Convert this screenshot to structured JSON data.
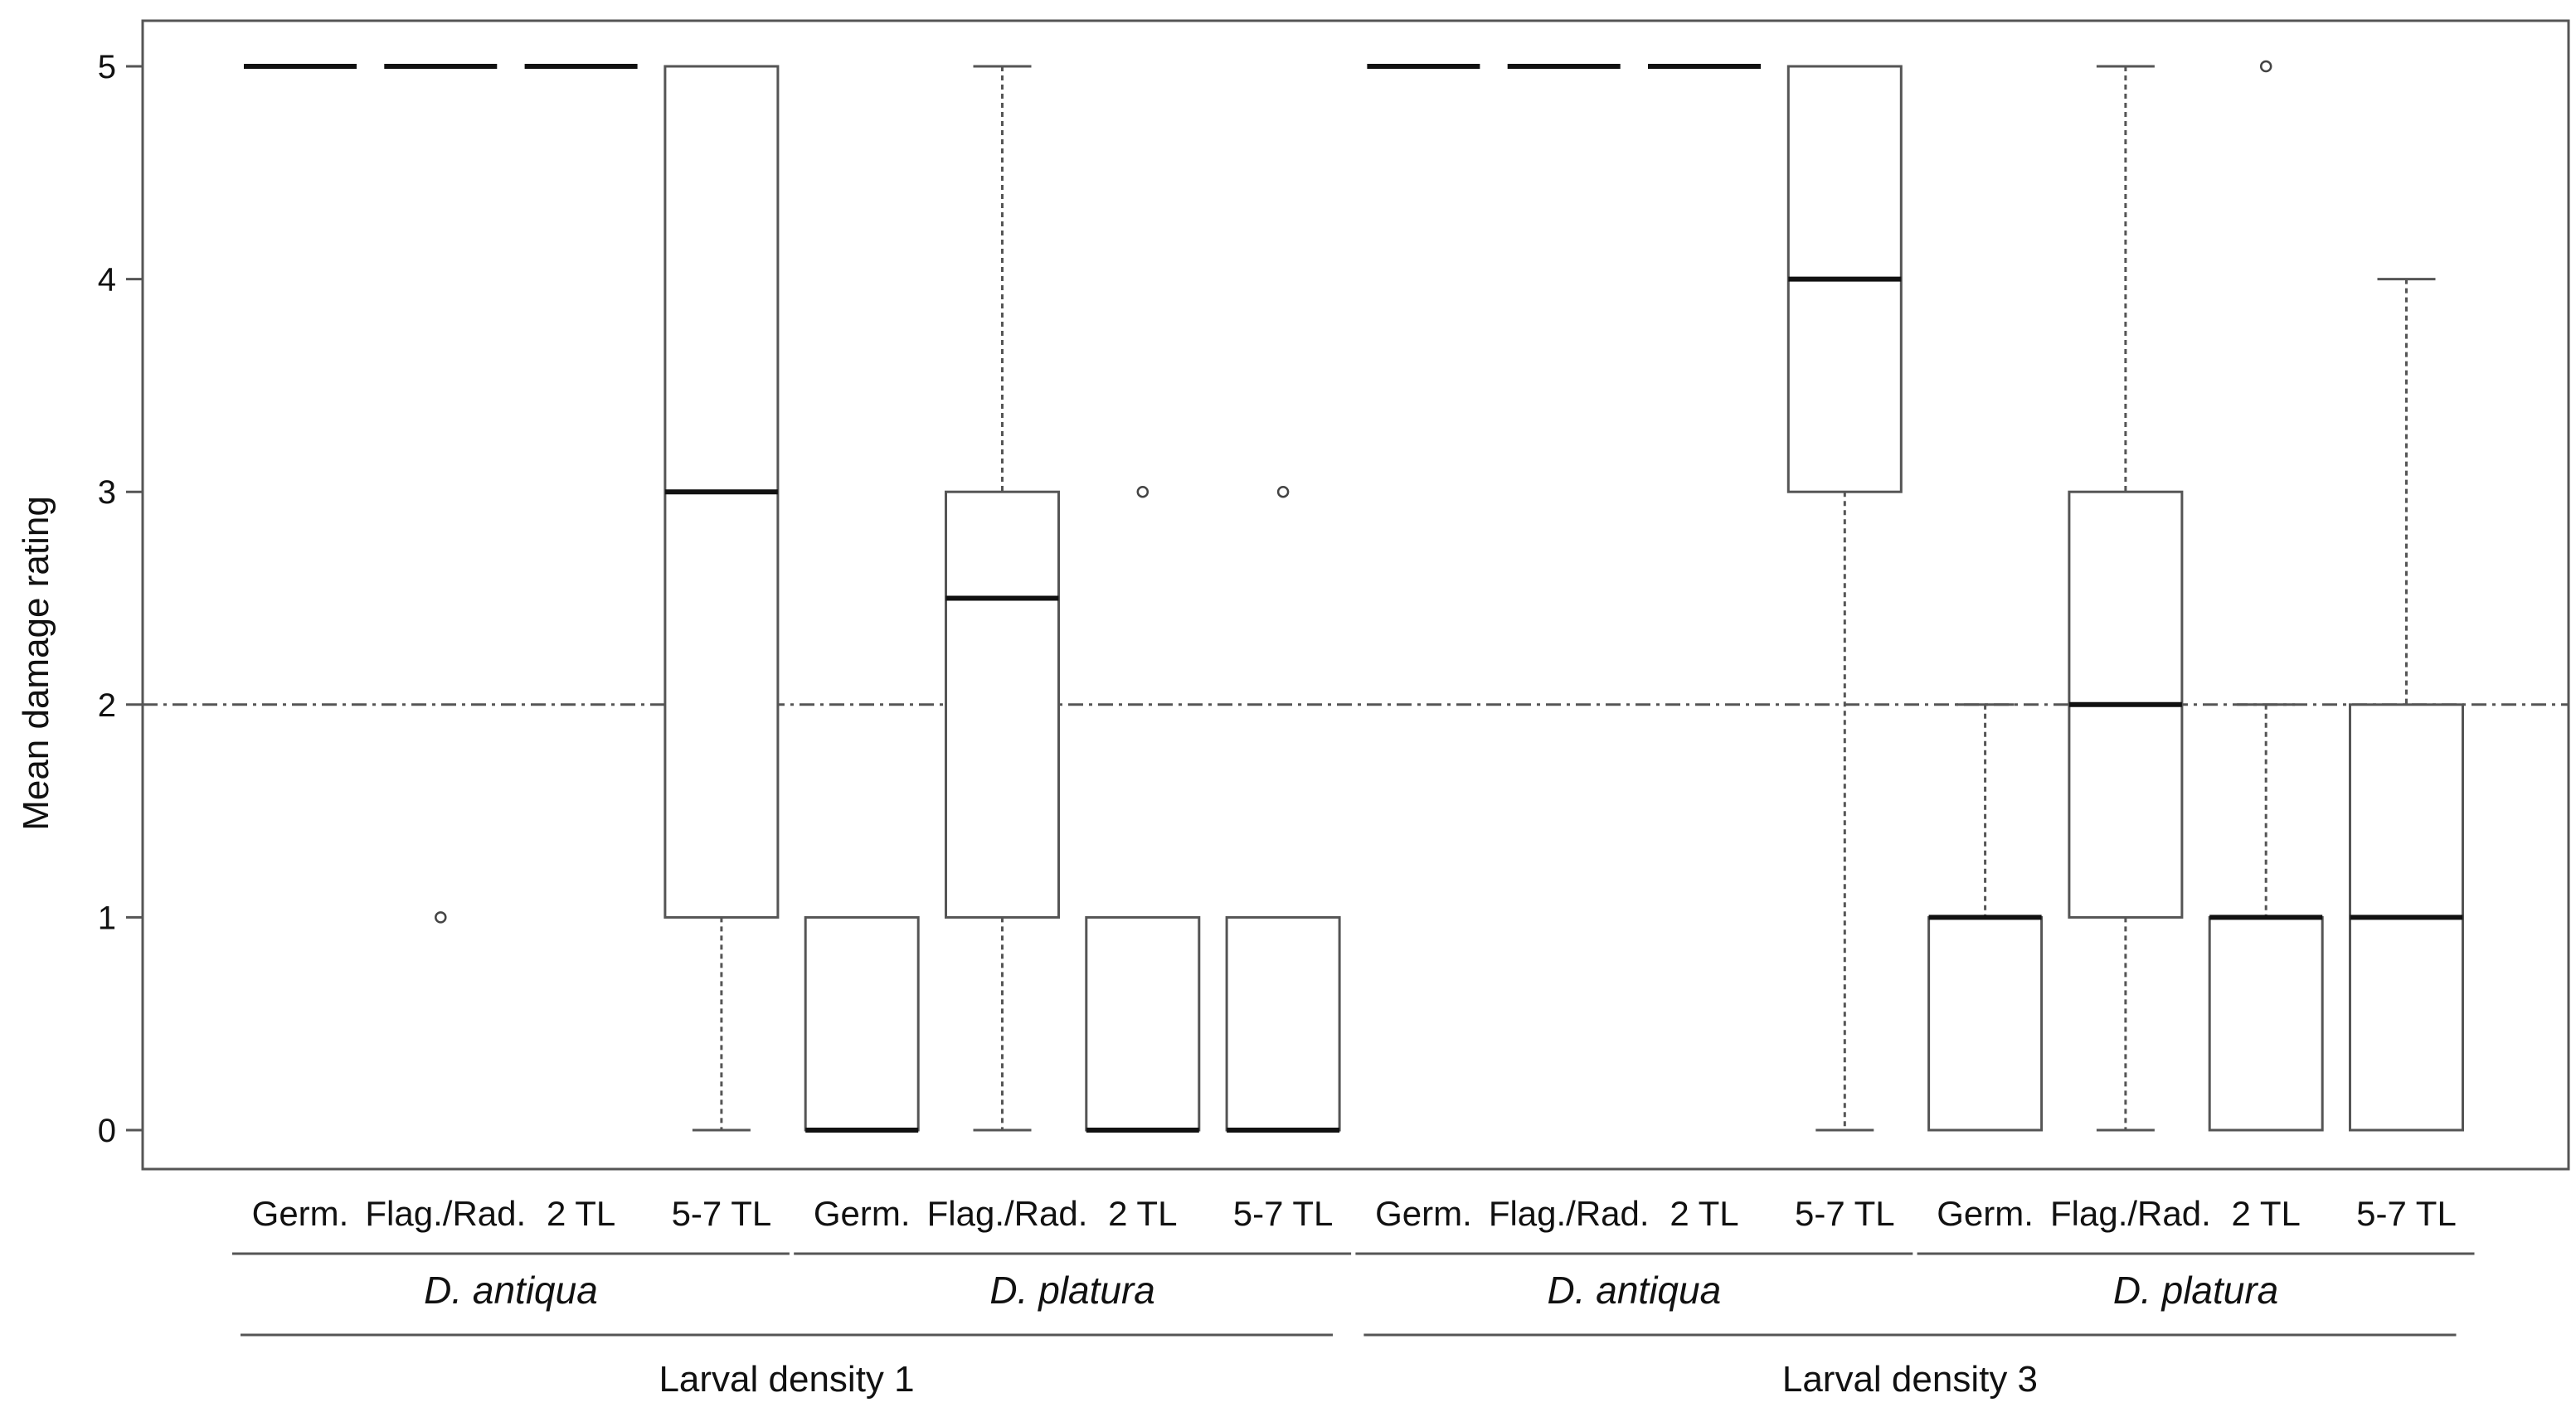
{
  "chart_data": {
    "type": "box",
    "ylabel": "Mean damage rating",
    "ylim": [
      0,
      5
    ],
    "yticks": [
      0,
      1,
      2,
      3,
      4,
      5
    ],
    "reference_line": {
      "y": 2,
      "style": "dash-dot"
    },
    "grid": false,
    "legend": "none",
    "stage_labels": [
      "Germ.",
      "Flag./Rad.",
      "2 TL",
      "5-7 TL"
    ],
    "density_groups": [
      {
        "label": "Larval density 1",
        "species": [
          {
            "name": "D. antiqua",
            "boxes": [
              {
                "stage": "Germ.",
                "min": 5,
                "q1": 5,
                "median": 5,
                "q3": 5,
                "max": 5,
                "outliers": []
              },
              {
                "stage": "Flag./Rad.",
                "min": 5,
                "q1": 5,
                "median": 5,
                "q3": 5,
                "max": 5,
                "outliers": [
                  1
                ]
              },
              {
                "stage": "2 TL",
                "min": 5,
                "q1": 5,
                "median": 5,
                "q3": 5,
                "max": 5,
                "outliers": []
              },
              {
                "stage": "5-7 TL",
                "min": 0,
                "q1": 1,
                "median": 3,
                "q3": 5,
                "max": 5,
                "outliers": []
              }
            ]
          },
          {
            "name": "D. platura",
            "boxes": [
              {
                "stage": "Germ.",
                "min": 0,
                "q1": 0,
                "median": 0,
                "q3": 1,
                "max": 1,
                "outliers": []
              },
              {
                "stage": "Flag./Rad.",
                "min": 0,
                "q1": 1,
                "median": 2.5,
                "q3": 3,
                "max": 5,
                "outliers": []
              },
              {
                "stage": "2 TL",
                "min": 0,
                "q1": 0,
                "median": 0,
                "q3": 1,
                "max": 1,
                "outliers": [
                  3
                ]
              },
              {
                "stage": "5-7 TL",
                "min": 0,
                "q1": 0,
                "median": 0,
                "q3": 1,
                "max": 1,
                "outliers": [
                  3
                ]
              }
            ]
          }
        ]
      },
      {
        "label": "Larval density 3",
        "species": [
          {
            "name": "D. antiqua",
            "boxes": [
              {
                "stage": "Germ.",
                "min": 5,
                "q1": 5,
                "median": 5,
                "q3": 5,
                "max": 5,
                "outliers": []
              },
              {
                "stage": "Flag./Rad.",
                "min": 5,
                "q1": 5,
                "median": 5,
                "q3": 5,
                "max": 5,
                "outliers": []
              },
              {
                "stage": "2 TL",
                "min": 5,
                "q1": 5,
                "median": 5,
                "q3": 5,
                "max": 5,
                "outliers": []
              },
              {
                "stage": "5-7 TL",
                "min": 0,
                "q1": 3,
                "median": 4,
                "q3": 5,
                "max": 5,
                "outliers": []
              }
            ]
          },
          {
            "name": "D. platura",
            "boxes": [
              {
                "stage": "Germ.",
                "min": 0,
                "q1": 0,
                "median": 1,
                "q3": 1,
                "max": 2,
                "outliers": []
              },
              {
                "stage": "Flag./Rad.",
                "min": 0,
                "q1": 1,
                "median": 2,
                "q3": 3,
                "max": 5,
                "outliers": []
              },
              {
                "stage": "2 TL",
                "min": 0,
                "q1": 0,
                "median": 1,
                "q3": 1,
                "max": 2,
                "outliers": [
                  5
                ]
              },
              {
                "stage": "5-7 TL",
                "min": 0,
                "q1": 0,
                "median": 1,
                "q3": 2,
                "max": 4,
                "outliers": []
              }
            ]
          }
        ]
      }
    ]
  }
}
